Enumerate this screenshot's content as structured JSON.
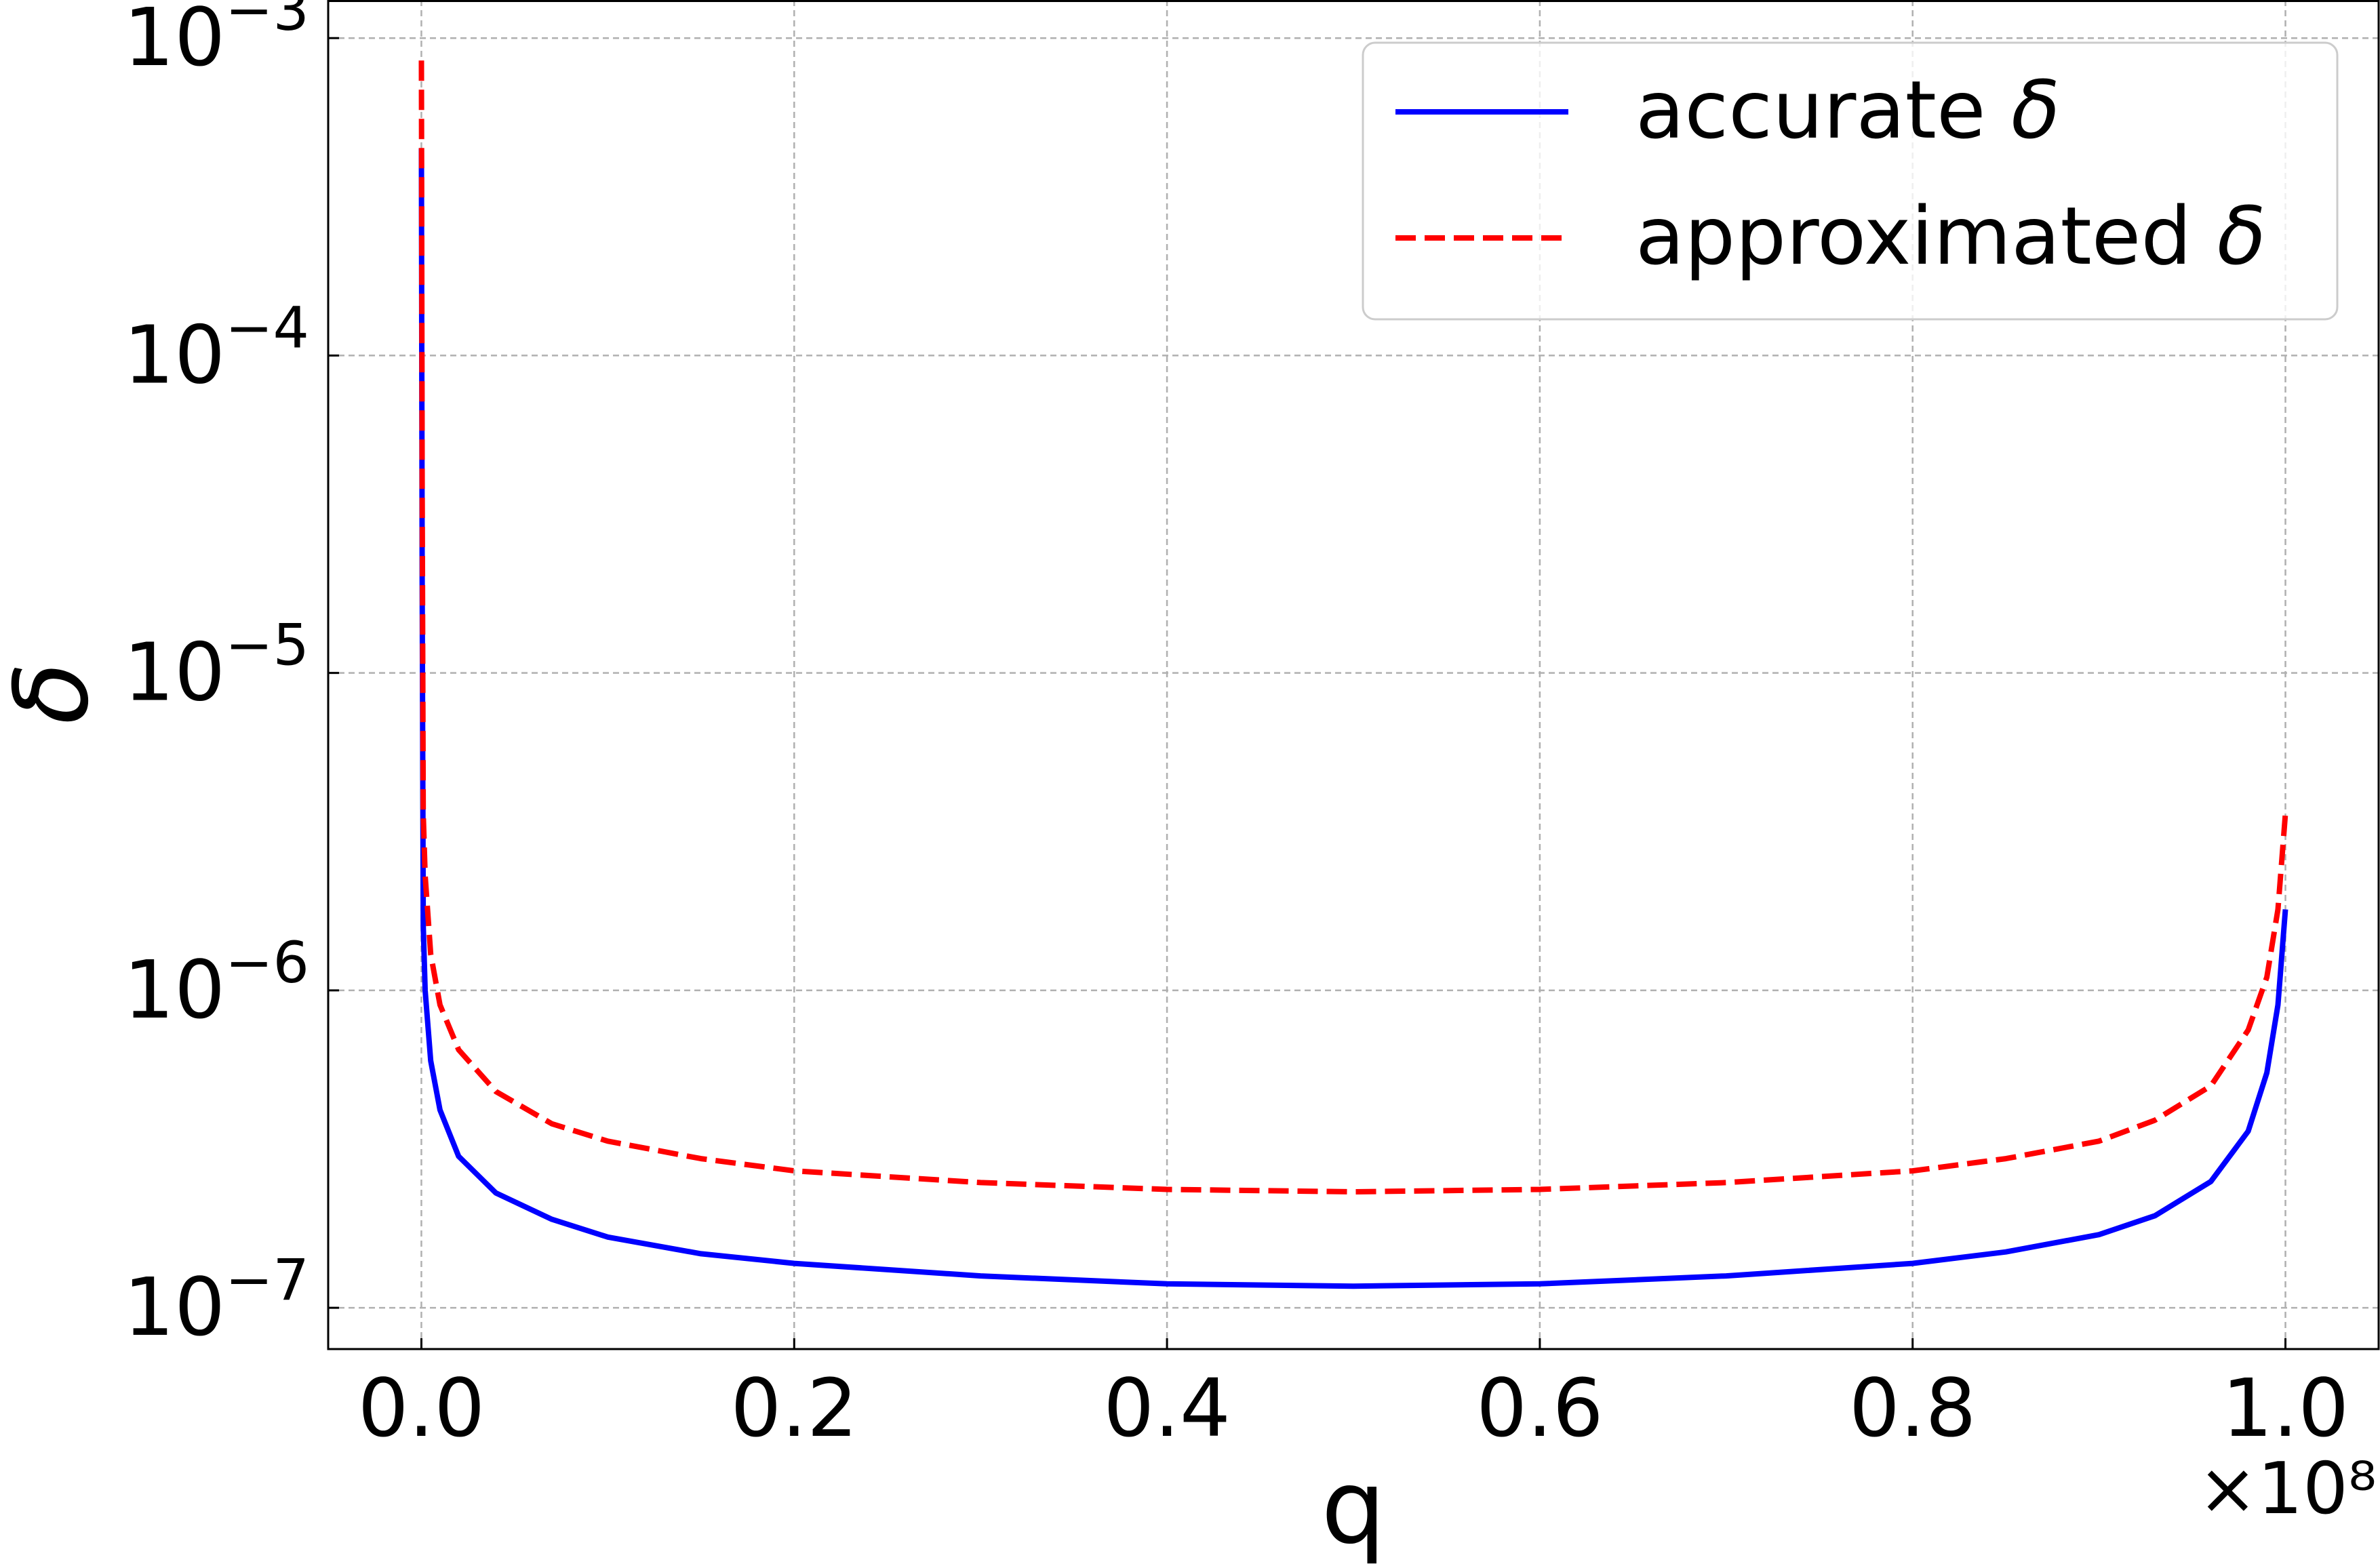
{
  "chart_data": {
    "type": "line",
    "xlabel": "q",
    "ylabel": "δ",
    "x_offset_label": "×10⁸",
    "x_multiplier": 100000000,
    "xlim": [
      -0.05,
      1.05
    ],
    "ylim_log10": [
      -7.13,
      -2.88
    ],
    "yscale": "log",
    "grid": true,
    "legend_position": "top-right",
    "x_ticks": [
      0.0,
      0.2,
      0.4,
      0.6,
      0.8,
      1.0
    ],
    "x_tick_labels": [
      "0.0",
      "0.2",
      "0.4",
      "0.6",
      "0.8",
      "1.0"
    ],
    "y_ticks_log10": [
      -7,
      -6,
      -5,
      -4,
      -3
    ],
    "y_tick_labels": [
      {
        "base": "10",
        "exp": "−7"
      },
      {
        "base": "10",
        "exp": "−6"
      },
      {
        "base": "10",
        "exp": "−5"
      },
      {
        "base": "10",
        "exp": "−4"
      },
      {
        "base": "10",
        "exp": "−3"
      }
    ],
    "series": [
      {
        "name": "accurate δ",
        "color": "#0000ff",
        "style": "solid",
        "x": [
          0.0,
          0.0004,
          0.001,
          0.002,
          0.005,
          0.01,
          0.02,
          0.04,
          0.07,
          0.1,
          0.15,
          0.2,
          0.3,
          0.4,
          0.5,
          0.6,
          0.7,
          0.8,
          0.85,
          0.9,
          0.93,
          0.96,
          0.98,
          0.99,
          0.996,
          1.0
        ],
        "y": [
          0.00045,
          2e-05,
          1.6e-06,
          1e-06,
          6e-07,
          4.2e-07,
          3e-07,
          2.3e-07,
          1.9e-07,
          1.67e-07,
          1.48e-07,
          1.38e-07,
          1.26e-07,
          1.19e-07,
          1.17e-07,
          1.19e-07,
          1.26e-07,
          1.38e-07,
          1.5e-07,
          1.7e-07,
          1.95e-07,
          2.5e-07,
          3.6e-07,
          5.5e-07,
          9e-07,
          1.8e-06
        ]
      },
      {
        "name": "approximated δ",
        "color": "#ff0000",
        "style": "dashed",
        "x": [
          0.0,
          0.0004,
          0.001,
          0.002,
          0.005,
          0.01,
          0.02,
          0.04,
          0.07,
          0.1,
          0.15,
          0.2,
          0.3,
          0.4,
          0.5,
          0.6,
          0.7,
          0.8,
          0.85,
          0.9,
          0.93,
          0.96,
          0.98,
          0.99,
          0.996,
          1.0
        ],
        "y": [
          0.00085,
          4e-05,
          3.6e-06,
          2.3e-06,
          1.3e-06,
          9e-07,
          6.5e-07,
          4.8e-07,
          3.8e-07,
          3.35e-07,
          2.95e-07,
          2.7e-07,
          2.48e-07,
          2.36e-07,
          2.32e-07,
          2.36e-07,
          2.48e-07,
          2.7e-07,
          2.95e-07,
          3.35e-07,
          3.9e-07,
          5e-07,
          7.5e-07,
          1.1e-06,
          1.8e-06,
          3.6e-06
        ]
      }
    ]
  }
}
